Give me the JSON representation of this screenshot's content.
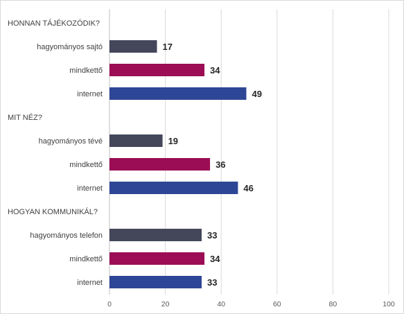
{
  "chart_data": {
    "type": "bar",
    "orientation": "horizontal",
    "xlim": [
      0,
      100
    ],
    "xticks": [
      0,
      20,
      40,
      60,
      80,
      100
    ],
    "grid": true,
    "groups": [
      {
        "title": "HONNAN TÁJÉKOZÓDIK?",
        "bars": [
          {
            "label": "hagyományos sajtó",
            "value": 17,
            "color": "#44475a"
          },
          {
            "label": "mindkettő",
            "value": 34,
            "color": "#9b0d54"
          },
          {
            "label": "internet",
            "value": 49,
            "color": "#2e4696"
          }
        ]
      },
      {
        "title": "MIT NÉZ?",
        "bars": [
          {
            "label": "hagyományos tévé",
            "value": 19,
            "color": "#44475a"
          },
          {
            "label": "mindkettő",
            "value": 36,
            "color": "#9b0d54"
          },
          {
            "label": "internet",
            "value": 46,
            "color": "#2e4696"
          }
        ]
      },
      {
        "title": "HOGYAN KOMMUNIKÁL?",
        "bars": [
          {
            "label": "hagyományos telefon",
            "value": 33,
            "color": "#44475a"
          },
          {
            "label": "mindkettő",
            "value": 34,
            "color": "#9b0d54"
          },
          {
            "label": "internet",
            "value": 33,
            "color": "#2e4696"
          }
        ]
      }
    ]
  }
}
